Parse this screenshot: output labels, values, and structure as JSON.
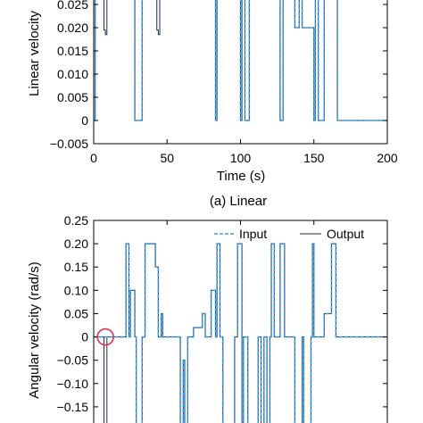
{
  "chart_data": [
    {
      "type": "line",
      "caption": "(a) Linear",
      "xlabel": "Time (s)",
      "ylabel": "Linear velocity",
      "xlim": [
        0,
        200
      ],
      "ylim": [
        -0.005,
        0.025
      ],
      "x_ticks": [
        0,
        50,
        100,
        150,
        200
      ],
      "x_tick_labels": [
        "0",
        "50",
        "100",
        "150",
        "200"
      ],
      "y_ticks": [
        0.025,
        0.02,
        0.015,
        0.01,
        0.005,
        0,
        -0.005
      ],
      "y_tick_labels": [
        "0.025",
        "0.020",
        "0.015",
        "0.010",
        "0.005",
        "0",
        "−0.005"
      ],
      "grid": false,
      "series": [
        {
          "name": "Input",
          "color": "#3f9ad8",
          "style": "dashed",
          "x": [
            0,
            1,
            1,
            28,
            28,
            33,
            33,
            50,
            50,
            83,
            83,
            84,
            84,
            100,
            100,
            101,
            101,
            103,
            103,
            106,
            106,
            108,
            108,
            110,
            110,
            127,
            127,
            129,
            129,
            131,
            131,
            137,
            137,
            140,
            140,
            142,
            142,
            150,
            150,
            151,
            151,
            153,
            153,
            157,
            157,
            158,
            158,
            166,
            166,
            200
          ],
          "y": [
            0.0,
            0.0,
            0.027,
            0.027,
            0.0,
            0.0,
            0.027,
            0.027,
            0.027,
            0.027,
            0.0,
            0.0,
            0.027,
            0.027,
            0.0,
            0.0,
            0.027,
            0.027,
            0.0,
            0.0,
            0.027,
            0.027,
            0.027,
            0.027,
            0.027,
            0.027,
            0.0,
            0.0,
            0.027,
            0.027,
            0.027,
            0.027,
            0.02,
            0.02,
            0.027,
            0.027,
            0.02,
            0.02,
            0.0,
            0.0,
            0.027,
            0.027,
            0.0,
            0.0,
            0.027,
            0.027,
            0.027,
            0.027,
            0.0,
            0.0
          ]
        },
        {
          "name": "Output",
          "color": "#1f2f4f",
          "style": "solid",
          "x": [
            0,
            1,
            1,
            3,
            3,
            7,
            7,
            8,
            8,
            9,
            9,
            28,
            28,
            33,
            33,
            43,
            43,
            44,
            44,
            45,
            45,
            83,
            83,
            84,
            84,
            100,
            100,
            101,
            101,
            103,
            103,
            106,
            106,
            127,
            127,
            129,
            129,
            137,
            137,
            140,
            140,
            142,
            142,
            150,
            150,
            151,
            151,
            153,
            153,
            157,
            157,
            166,
            166,
            200
          ],
          "y": [
            0.0,
            0.0,
            0.027,
            0.027,
            0.027,
            0.027,
            0.0195,
            0.0195,
            0.0185,
            0.0185,
            0.027,
            0.027,
            0.0,
            0.0,
            0.027,
            0.027,
            0.0195,
            0.0195,
            0.0185,
            0.0185,
            0.027,
            0.027,
            0.0,
            0.0,
            0.027,
            0.027,
            0.0,
            0.0,
            0.027,
            0.027,
            0.0,
            0.0,
            0.027,
            0.027,
            0.0,
            0.0,
            0.027,
            0.027,
            0.02,
            0.02,
            0.027,
            0.027,
            0.02,
            0.02,
            0.0,
            0.0,
            0.027,
            0.027,
            0.0,
            0.0,
            0.027,
            0.027,
            0.0,
            0.0
          ]
        }
      ]
    },
    {
      "type": "line",
      "caption": "",
      "xlabel": "",
      "ylabel": "Angular velocity (rad/s)",
      "xlim": [
        0,
        200
      ],
      "ylim": [
        -0.2,
        0.25
      ],
      "x_ticks": [
        0,
        50,
        100,
        150,
        200
      ],
      "x_tick_labels": [],
      "y_ticks": [
        0.25,
        0.2,
        0.15,
        0.1,
        0.05,
        0,
        -0.05,
        -0.1,
        -0.15
      ],
      "y_tick_labels": [
        "0.25",
        "0.20",
        "0.15",
        "0.10",
        "0.05",
        "0",
        "−0.05",
        "−0.10",
        "−0.15"
      ],
      "grid": false,
      "legend": {
        "position": "top-right",
        "entries": [
          "Input",
          "Output"
        ]
      },
      "annotation": {
        "type": "circle",
        "x": 8,
        "y": 0,
        "color": "#e0305a"
      },
      "series": [
        {
          "name": "Input",
          "color": "#3f9ad8",
          "style": "dashed",
          "x": [
            0,
            22,
            22,
            24,
            24,
            25,
            25,
            28,
            28,
            29,
            29,
            33,
            33,
            35,
            35,
            42,
            42,
            44,
            44,
            46,
            46,
            47,
            47,
            59,
            59,
            61,
            61,
            62,
            62,
            64,
            64,
            68,
            68,
            74,
            74,
            76,
            76,
            80,
            80,
            83,
            83,
            84,
            84,
            86,
            86,
            88,
            88,
            96,
            96,
            98,
            98,
            101,
            101,
            102,
            102,
            105,
            105,
            112,
            112,
            114,
            114,
            116,
            116,
            118,
            118,
            120,
            120,
            121,
            121,
            123,
            123,
            127,
            127,
            130,
            130,
            137,
            137,
            142,
            142,
            143,
            143,
            148,
            148,
            149,
            149,
            150,
            150,
            157,
            157,
            162,
            162,
            165,
            165,
            200
          ],
          "y": [
            0.0,
            0.0,
            0.2,
            0.2,
            0.0,
            0.0,
            0.1,
            0.1,
            0.0,
            0.0,
            -0.2,
            -0.2,
            0.0,
            0.0,
            0.2,
            0.2,
            0.15,
            0.15,
            0.0,
            0.0,
            0.05,
            0.05,
            0.0,
            0.0,
            -0.2,
            -0.2,
            -0.05,
            -0.05,
            -0.2,
            -0.2,
            0.0,
            0.0,
            0.02,
            0.02,
            0.05,
            0.05,
            0.0,
            0.0,
            0.1,
            0.1,
            0.0,
            0.0,
            0.2,
            0.2,
            0.0,
            0.0,
            -0.2,
            -0.2,
            0.0,
            0.0,
            0.2,
            0.2,
            -0.2,
            -0.2,
            0.0,
            0.0,
            -0.2,
            -0.2,
            0.0,
            0.0,
            -0.2,
            -0.2,
            0.0,
            0.0,
            -0.2,
            -0.2,
            0.0,
            0.0,
            0.2,
            0.2,
            0.0,
            0.0,
            0.2,
            0.2,
            0.0,
            0.0,
            -0.2,
            -0.2,
            0.0,
            0.0,
            -0.2,
            -0.2,
            0.0,
            0.0,
            0.2,
            0.2,
            0.0,
            0.0,
            0.05,
            0.05,
            0.2,
            0.2,
            0.0,
            0.0
          ]
        },
        {
          "name": "Output",
          "color": "#1f2f4f",
          "style": "solid",
          "x": [
            0,
            7,
            7,
            9,
            9,
            22,
            22,
            24,
            24,
            25,
            25,
            28,
            28,
            29,
            29,
            33,
            33,
            35,
            35,
            42,
            42,
            44,
            44,
            46,
            46,
            47,
            47,
            59,
            59,
            61,
            61,
            62,
            62,
            64,
            64,
            68,
            68,
            74,
            74,
            76,
            76,
            80,
            80,
            83,
            83,
            84,
            84,
            86,
            86,
            88,
            88,
            96,
            96,
            98,
            98,
            101,
            101,
            102,
            102,
            105,
            105,
            112,
            112,
            114,
            114,
            116,
            116,
            118,
            118,
            120,
            120,
            121,
            121,
            123,
            123,
            127,
            127,
            130,
            130,
            137,
            137,
            142,
            142,
            143,
            143,
            148,
            148,
            149,
            149,
            150,
            150,
            157,
            157,
            162,
            162,
            165,
            165,
            200
          ],
          "y": [
            0.0,
            0.0,
            -0.2,
            -0.2,
            0.0,
            0.0,
            0.2,
            0.2,
            0.0,
            0.0,
            0.1,
            0.1,
            0.0,
            0.0,
            -0.2,
            -0.2,
            0.0,
            0.0,
            0.2,
            0.2,
            0.15,
            0.15,
            0.0,
            0.0,
            0.05,
            0.05,
            0.0,
            0.0,
            -0.2,
            -0.2,
            -0.05,
            -0.05,
            -0.2,
            -0.2,
            0.0,
            0.0,
            0.02,
            0.02,
            0.05,
            0.05,
            0.0,
            0.0,
            0.1,
            0.1,
            0.0,
            0.0,
            0.2,
            0.2,
            0.0,
            0.0,
            -0.2,
            -0.2,
            0.0,
            0.0,
            0.2,
            0.2,
            -0.2,
            -0.2,
            0.0,
            0.0,
            -0.2,
            -0.2,
            0.0,
            0.0,
            -0.2,
            -0.2,
            0.0,
            0.0,
            -0.2,
            -0.2,
            0.0,
            0.0,
            0.2,
            0.2,
            0.0,
            0.0,
            0.2,
            0.2,
            0.0,
            0.0,
            -0.2,
            -0.2,
            0.0,
            0.0,
            -0.2,
            -0.2,
            0.0,
            0.0,
            0.2,
            0.2,
            0.0,
            0.0,
            0.05,
            0.05,
            0.2,
            0.2,
            0.0,
            0.0
          ]
        }
      ]
    }
  ]
}
